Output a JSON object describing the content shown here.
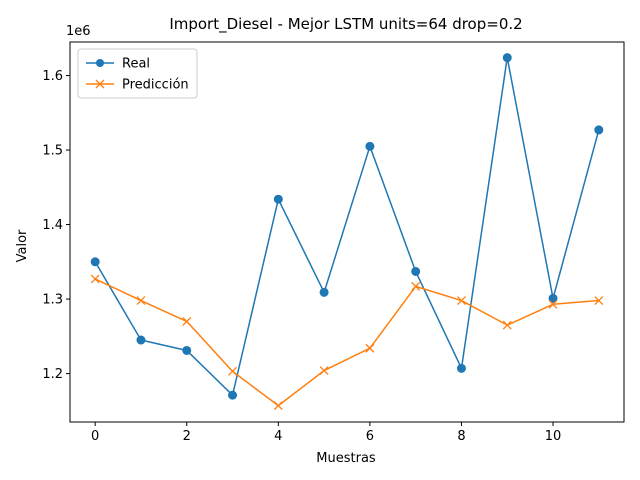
{
  "chart_data": {
    "type": "line",
    "title": "Import_Diesel - Mejor LSTM units=64 drop=0.2",
    "xlabel": "Muestras",
    "ylabel": "Valor",
    "y_offset_label": "1e6",
    "xlim": [
      -0.55,
      11.55
    ],
    "ylim": [
      1.135,
      1.645
    ],
    "x_ticks": [
      0,
      2,
      4,
      6,
      8,
      10
    ],
    "x_tick_labels": [
      "0",
      "2",
      "4",
      "6",
      "8",
      "10"
    ],
    "y_ticks": [
      1.2,
      1.3,
      1.4,
      1.5,
      1.6
    ],
    "y_tick_labels": [
      "1.2",
      "1.3",
      "1.4",
      "1.5",
      "1.6"
    ],
    "grid": false,
    "legend_position": "upper-left",
    "x": [
      0,
      1,
      2,
      3,
      4,
      5,
      6,
      7,
      8,
      9,
      10,
      11
    ],
    "series": [
      {
        "name": "Real",
        "color": "#1f77b4",
        "marker": "circle",
        "values": [
          1.35,
          1.245,
          1.231,
          1.171,
          1.434,
          1.309,
          1.505,
          1.337,
          1.207,
          1.624,
          1.301,
          1.527
        ]
      },
      {
        "name": "Predicción",
        "color": "#ff7f0e",
        "marker": "x",
        "values": [
          1.327,
          1.298,
          1.27,
          1.203,
          1.157,
          1.204,
          1.234,
          1.317,
          1.298,
          1.265,
          1.293,
          1.298
        ]
      }
    ]
  }
}
